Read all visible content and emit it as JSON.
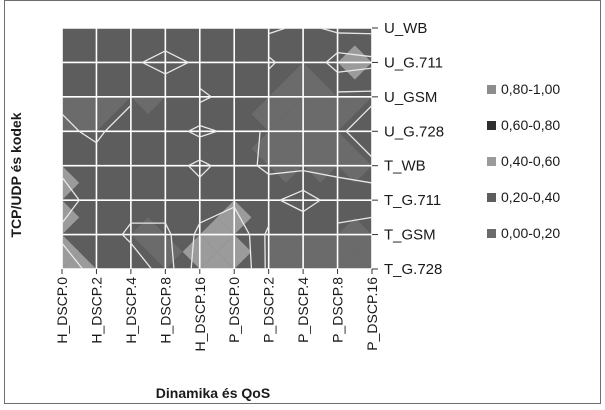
{
  "chart_data": {
    "type": "heatmap",
    "subtype": "filled-contour",
    "title": "",
    "xlabel": "Dinamika és QoS",
    "ylabel": "TCP/UDP és kodek",
    "x_categories": [
      "H_DSCP.0",
      "H_DSCP.2",
      "H_DSCP.4",
      "H_DSCP.8",
      "H_DSCP.16",
      "P_DSCP.0",
      "P_DSCP.2",
      "P_DSCP.4",
      "P_DSCP.8",
      "P_DSCP.16"
    ],
    "y_categories": [
      "T_G.728",
      "T_GSM",
      "T_G.711",
      "T_WB",
      "U_G.728",
      "U_GSM",
      "U_G.711",
      "U_WB"
    ],
    "values": [
      [
        0.55,
        0.3,
        0.35,
        0.1,
        0.5,
        0.65,
        0.15,
        0.15,
        0.1,
        0.15
      ],
      [
        0.35,
        0.35,
        0.15,
        0.15,
        0.45,
        0.6,
        0.15,
        0.2,
        0.15,
        0.15
      ],
      [
        0.5,
        0.3,
        0.3,
        0.3,
        0.3,
        0.35,
        0.35,
        0.5,
        0.3,
        0.25
      ],
      [
        0.35,
        0.3,
        0.35,
        0.3,
        0.15,
        0.3,
        0.15,
        0.15,
        0.15,
        0.15
      ],
      [
        0.25,
        0.15,
        0.35,
        0.3,
        0.45,
        0.35,
        0.15,
        0.15,
        0.15,
        0.35
      ],
      [
        0.15,
        0.2,
        0.15,
        0.2,
        0.15,
        0.3,
        0.2,
        0.15,
        0.15,
        0.15
      ],
      [
        0.35,
        0.35,
        0.35,
        0.5,
        0.35,
        0.4,
        0.45,
        0.2,
        0.5,
        0.45
      ],
      [
        0.15,
        0.2,
        0.15,
        0.2,
        0.15,
        0.2,
        0.15,
        0.25,
        0.15,
        0.15
      ]
    ],
    "legend": {
      "position": "right",
      "entries": [
        {
          "label": "0,80-1,00",
          "color": "#8c8c8c"
        },
        {
          "label": "0,60-0,80",
          "color": "#2e2e2e"
        },
        {
          "label": "0,40-0,60",
          "color": "#9b9b9b"
        },
        {
          "label": "0,20-0,40",
          "color": "#5d5d5d"
        },
        {
          "label": "0,00-0,20",
          "color": "#6b6b6b"
        }
      ]
    },
    "grid": true
  }
}
